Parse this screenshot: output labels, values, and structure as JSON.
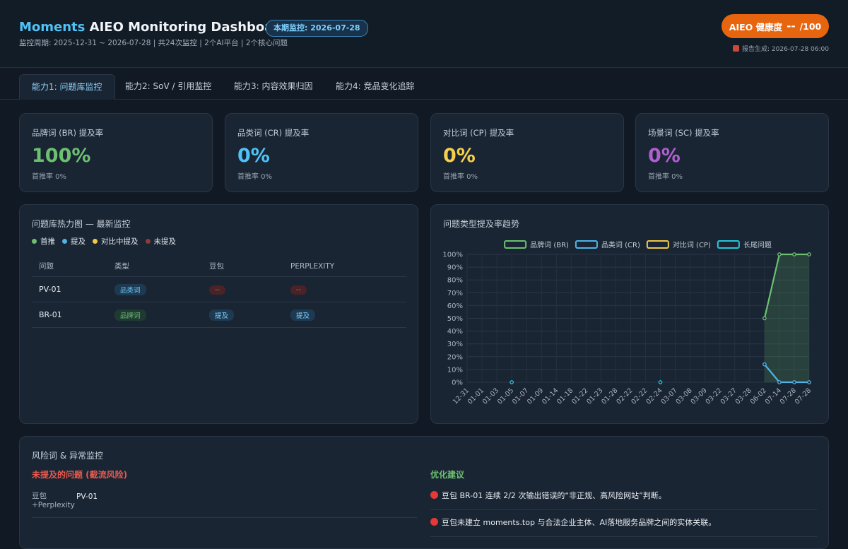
{
  "header": {
    "brand": "Moments",
    "title": "AIEO Monitoring Dashboard",
    "badge": "本期监控: 2026-07-28",
    "subtitle": "监控周期: 2025-12-31 ~ 2026-07-28 | 共24次监控 | 2个AI平台 | 2个核心问题",
    "health_label": "AIEO 健康度",
    "health_value": "--",
    "health_suffix": "/100",
    "generated": "报告生成: 2026-07-28 06:00"
  },
  "tabs": [
    "能力1: 问题库监控",
    "能力2: SoV / 引用监控",
    "能力3: 内容效果归因",
    "能力4: 竞品变化追踪"
  ],
  "kpis": [
    {
      "label": "品牌词 (BR) 提及率",
      "value": "100%",
      "sub": "首推率 0%"
    },
    {
      "label": "品类词 (CR) 提及率",
      "value": "0%",
      "sub": "首推率 0%"
    },
    {
      "label": "对比词 (CP) 提及率",
      "value": "0%",
      "sub": "首推率 0%"
    },
    {
      "label": "场景词 (SC) 提及率",
      "value": "0%",
      "sub": "首推率 0%"
    }
  ],
  "heatmap": {
    "title": "问题库热力图 — 最新监控",
    "legend": [
      "首推",
      "提及",
      "对比中提及",
      "未提及"
    ],
    "columns": [
      "问题",
      "类型",
      "豆包",
      "PERPLEXITY"
    ],
    "rows": [
      [
        "PV-01",
        "品类词",
        "--",
        "--"
      ],
      [
        "BR-01",
        "品牌词",
        "提及",
        "提及"
      ]
    ]
  },
  "chart_data": {
    "type": "line",
    "title": "问题类型提及率趋势",
    "categories": [
      "12-31",
      "01-01",
      "01-03",
      "01-05",
      "01-07",
      "01-09",
      "01-14",
      "01-18",
      "01-22",
      "01-23",
      "01-28",
      "02-22",
      "02-22",
      "02-24",
      "03-07",
      "03-08",
      "03-09",
      "03-22",
      "03-27",
      "03-28",
      "06-02",
      "07-14",
      "07-28",
      "07-28"
    ],
    "series": [
      {
        "name": "品牌词 (BR)",
        "color": "#6cc070",
        "fill": true,
        "values": [
          null,
          null,
          null,
          null,
          null,
          null,
          null,
          null,
          null,
          null,
          null,
          null,
          null,
          null,
          null,
          null,
          null,
          null,
          null,
          null,
          50,
          100,
          100,
          100
        ]
      },
      {
        "name": "品类词 (CR)",
        "color": "#4fb3e8",
        "values": [
          null,
          null,
          null,
          null,
          null,
          null,
          null,
          null,
          null,
          null,
          null,
          null,
          null,
          null,
          null,
          null,
          null,
          null,
          null,
          null,
          14,
          0,
          0,
          0
        ]
      },
      {
        "name": "对比词 (CP)",
        "color": "#f0c94a",
        "values": [
          null,
          null,
          null,
          null,
          null,
          null,
          null,
          null,
          null,
          null,
          null,
          null,
          null,
          null,
          null,
          null,
          null,
          null,
          null,
          null,
          null,
          null,
          null,
          null
        ]
      },
      {
        "name": "长尾问题",
        "color": "#26c6da",
        "values": [
          null,
          null,
          null,
          0,
          null,
          null,
          null,
          null,
          null,
          null,
          null,
          null,
          null,
          0,
          null,
          null,
          null,
          null,
          null,
          null,
          null,
          null,
          null,
          null
        ]
      }
    ],
    "ylim": [
      0,
      100
    ],
    "yticks": [
      {
        "value": 0,
        "label": "0%"
      },
      {
        "value": 10,
        "label": "10%"
      },
      {
        "value": 20,
        "label": "20%"
      },
      {
        "value": 30,
        "label": "30%"
      },
      {
        "value": 40,
        "label": "40%"
      },
      {
        "value": 50,
        "label": "50%"
      },
      {
        "value": 60,
        "label": "60%"
      },
      {
        "value": 70,
        "label": "70%"
      },
      {
        "value": 80,
        "label": "80%"
      },
      {
        "value": 90,
        "label": "90%"
      },
      {
        "value": 100,
        "label": "100%"
      }
    ],
    "grid": true,
    "legend": "top"
  },
  "risk": {
    "title": "风险词 & 异常监控",
    "missing_title": "未提及的问题 (截流风险)",
    "missing_rows": [
      {
        "platform": "豆包 +Perplexity",
        "question": "PV-01"
      }
    ],
    "advice_title": "优化建议",
    "advice": [
      "豆包 BR-01 连续 2/2 次输出错误的“非正规、高风险网站”判断。",
      "豆包未建立 moments.top 与合法企业主体、AI落地服务品牌之间的实体关联。"
    ]
  }
}
